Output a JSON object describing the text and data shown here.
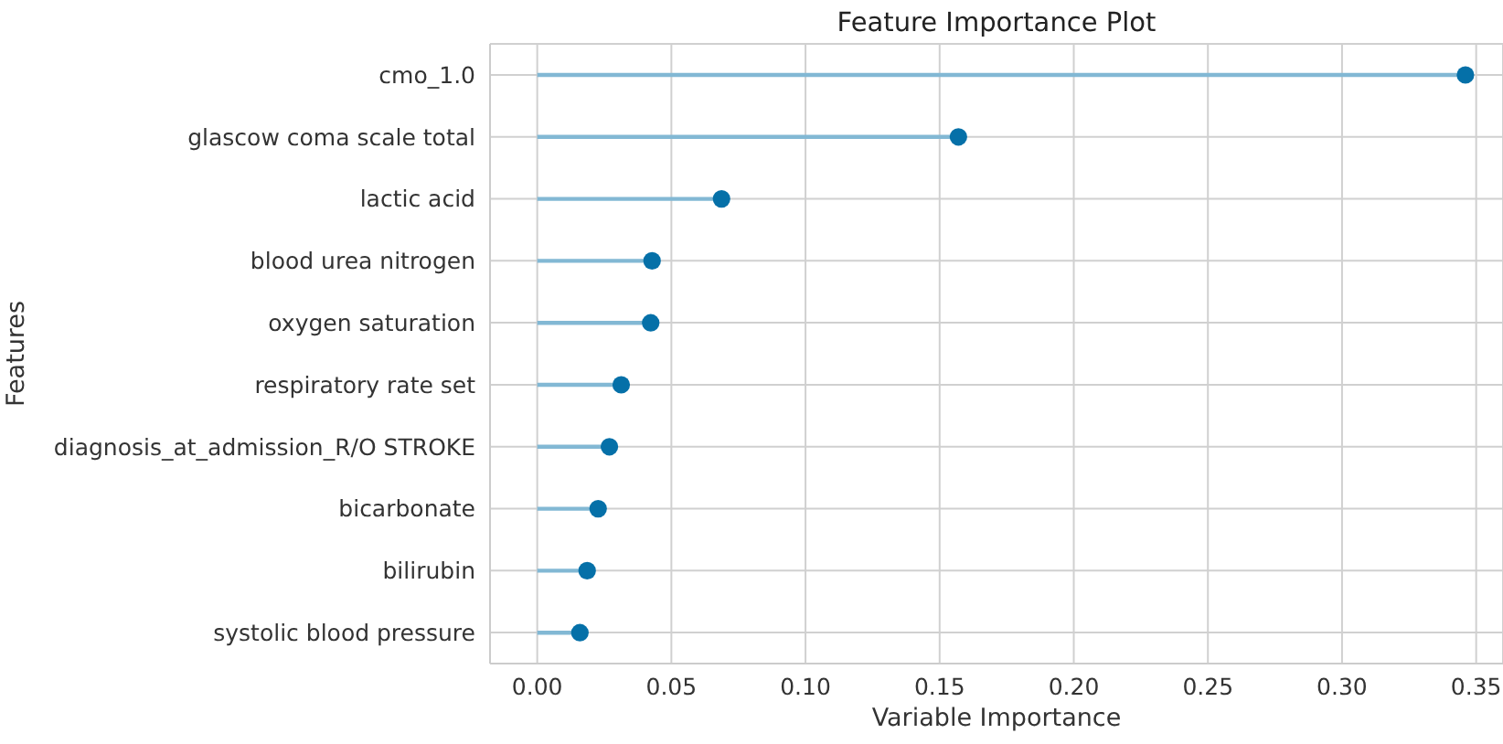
{
  "chart_data": {
    "type": "lollipop",
    "orientation": "horizontal",
    "title": "Feature Importance Plot",
    "xlabel": "Variable Importance",
    "ylabel": "Features",
    "categories": [
      "cmo_1.0",
      "glascow coma scale total",
      "lactic acid",
      "blood urea nitrogen",
      "oxygen saturation",
      "respiratory rate set",
      "diagnosis_at_admission_R/O STROKE",
      "bicarbonate",
      "bilirubin",
      "systolic blood pressure"
    ],
    "values": [
      0.346,
      0.157,
      0.0687,
      0.0428,
      0.0423,
      0.0313,
      0.0269,
      0.0227,
      0.0186,
      0.0159
    ],
    "color": "#0570a8",
    "marker": "circle",
    "grid": true,
    "legend": false,
    "xlim": [
      -0.0176,
      0.36
    ],
    "xticks": [
      {
        "value": 0,
        "label": "0.00"
      },
      {
        "value": 0.05,
        "label": "0.05"
      },
      {
        "value": 0.1,
        "label": "0.10"
      },
      {
        "value": 0.15,
        "label": "0.15"
      },
      {
        "value": 0.2,
        "label": "0.20"
      },
      {
        "value": 0.25,
        "label": "0.25"
      },
      {
        "value": 0.3,
        "label": "0.30"
      },
      {
        "value": 0.35,
        "label": "0.35"
      }
    ]
  }
}
